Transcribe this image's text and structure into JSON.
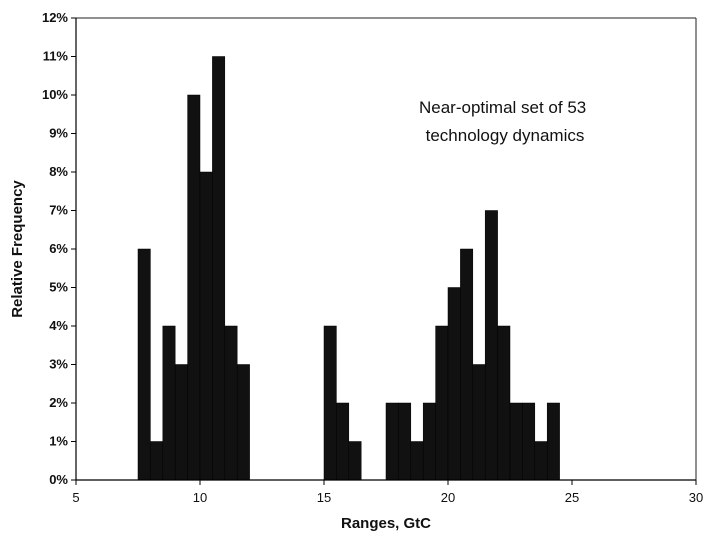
{
  "chart_data": {
    "type": "bar",
    "xlabel": "Ranges, GtC",
    "ylabel": "Relative Frequency",
    "xlim": [
      5,
      30
    ],
    "ylim": [
      0,
      12
    ],
    "xticks": [
      5,
      10,
      15,
      20,
      25,
      30
    ],
    "yticks": [
      0,
      1,
      2,
      3,
      4,
      5,
      6,
      7,
      8,
      9,
      10,
      11,
      12
    ],
    "ytick_suffix": "%",
    "annotation_lines": [
      "Near-optimal set of 53",
      "technology dynamics"
    ],
    "bin_width": 0.5,
    "bars_color": "#111111",
    "bins": [
      {
        "x": 7.75,
        "value": 6
      },
      {
        "x": 8.25,
        "value": 1
      },
      {
        "x": 8.75,
        "value": 4
      },
      {
        "x": 9.25,
        "value": 3
      },
      {
        "x": 9.75,
        "value": 10
      },
      {
        "x": 10.25,
        "value": 8
      },
      {
        "x": 10.75,
        "value": 11
      },
      {
        "x": 11.25,
        "value": 4
      },
      {
        "x": 11.75,
        "value": 3
      },
      {
        "x": 15.25,
        "value": 4
      },
      {
        "x": 15.75,
        "value": 2
      },
      {
        "x": 16.25,
        "value": 1
      },
      {
        "x": 17.75,
        "value": 2
      },
      {
        "x": 18.25,
        "value": 2
      },
      {
        "x": 18.75,
        "value": 1
      },
      {
        "x": 19.25,
        "value": 2
      },
      {
        "x": 19.75,
        "value": 4
      },
      {
        "x": 20.25,
        "value": 5
      },
      {
        "x": 20.75,
        "value": 6
      },
      {
        "x": 21.25,
        "value": 3
      },
      {
        "x": 21.75,
        "value": 7
      },
      {
        "x": 22.25,
        "value": 4
      },
      {
        "x": 22.75,
        "value": 2
      },
      {
        "x": 23.25,
        "value": 2
      },
      {
        "x": 23.75,
        "value": 1
      },
      {
        "x": 24.25,
        "value": 2
      }
    ]
  }
}
